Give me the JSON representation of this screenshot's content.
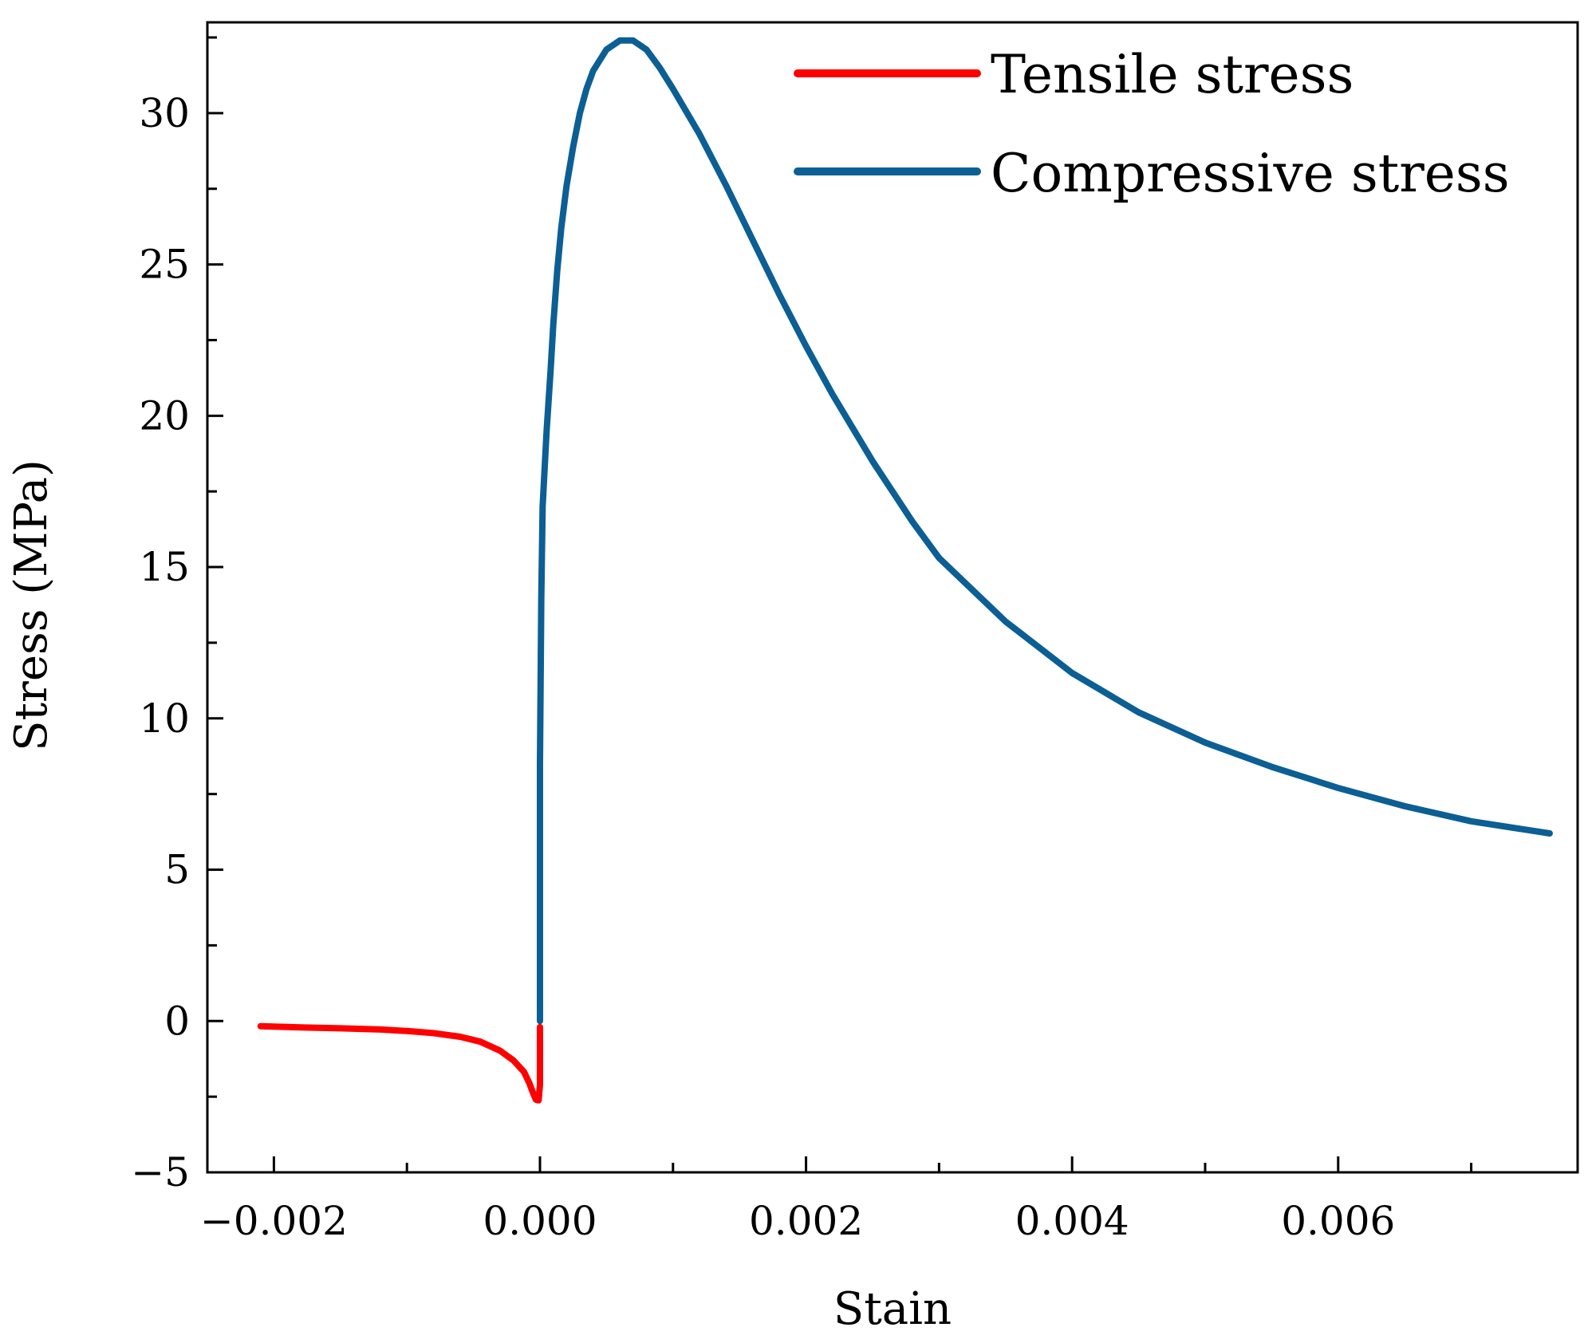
{
  "chart_data": {
    "type": "line",
    "title": "",
    "xlabel": "Stain",
    "ylabel": "Stress (MPa)",
    "xlim": [
      -0.0025,
      0.0078
    ],
    "ylim": [
      -5,
      33
    ],
    "x_ticks": [
      -0.002,
      0.0,
      0.002,
      0.004,
      0.006
    ],
    "x_tick_labels": [
      "−0.002",
      "0.000",
      "0.002",
      "0.004",
      "0.006"
    ],
    "y_ticks": [
      -5,
      0,
      5,
      10,
      15,
      20,
      25,
      30
    ],
    "y_tick_labels": [
      "−5",
      "0",
      "5",
      "10",
      "15",
      "20",
      "25",
      "30"
    ],
    "legend_position": "top-right",
    "grid": false,
    "series": [
      {
        "name": "Tensile stress",
        "color": "#ff0000",
        "points": [
          [
            -0.0021,
            -0.17
          ],
          [
            -0.0018,
            -0.21
          ],
          [
            -0.0015,
            -0.24
          ],
          [
            -0.0012,
            -0.28
          ],
          [
            -0.001,
            -0.33
          ],
          [
            -0.0008,
            -0.4
          ],
          [
            -0.0006,
            -0.52
          ],
          [
            -0.00045,
            -0.68
          ],
          [
            -0.0003,
            -0.98
          ],
          [
            -0.0002,
            -1.3
          ],
          [
            -0.00012,
            -1.68
          ],
          [
            -8e-05,
            -2.05
          ],
          [
            -5e-05,
            -2.4
          ],
          [
            -3e-05,
            -2.6
          ],
          [
            -1e-05,
            -2.62
          ],
          [
            0.0,
            -2.1
          ],
          [
            0.0,
            -0.2
          ]
        ]
      },
      {
        "name": "Compressive stress",
        "color": "#0b5f94",
        "points": [
          [
            0.0,
            0.0
          ],
          [
            0.0,
            8.5
          ],
          [
            1e-05,
            14.0
          ],
          [
            2e-05,
            17.0
          ],
          [
            5e-05,
            19.5
          ],
          [
            8e-05,
            21.5
          ],
          [
            0.0001,
            23.0
          ],
          [
            0.00013,
            24.8
          ],
          [
            0.00016,
            26.2
          ],
          [
            0.0002,
            27.6
          ],
          [
            0.00025,
            28.9
          ],
          [
            0.0003,
            30.0
          ],
          [
            0.00035,
            30.8
          ],
          [
            0.0004,
            31.4
          ],
          [
            0.0005,
            32.1
          ],
          [
            0.0006,
            32.4
          ],
          [
            0.0007,
            32.4
          ],
          [
            0.0008,
            32.1
          ],
          [
            0.0009,
            31.5
          ],
          [
            0.001,
            30.8
          ],
          [
            0.0012,
            29.3
          ],
          [
            0.0014,
            27.6
          ],
          [
            0.0016,
            25.8
          ],
          [
            0.0018,
            24.0
          ],
          [
            0.002,
            22.3
          ],
          [
            0.0022,
            20.7
          ],
          [
            0.0025,
            18.5
          ],
          [
            0.0028,
            16.5
          ],
          [
            0.003,
            15.3
          ],
          [
            0.0035,
            13.2
          ],
          [
            0.004,
            11.5
          ],
          [
            0.0045,
            10.2
          ],
          [
            0.005,
            9.2
          ],
          [
            0.0055,
            8.4
          ],
          [
            0.006,
            7.7
          ],
          [
            0.0065,
            7.1
          ],
          [
            0.007,
            6.6
          ],
          [
            0.00759,
            6.2
          ]
        ]
      }
    ]
  }
}
